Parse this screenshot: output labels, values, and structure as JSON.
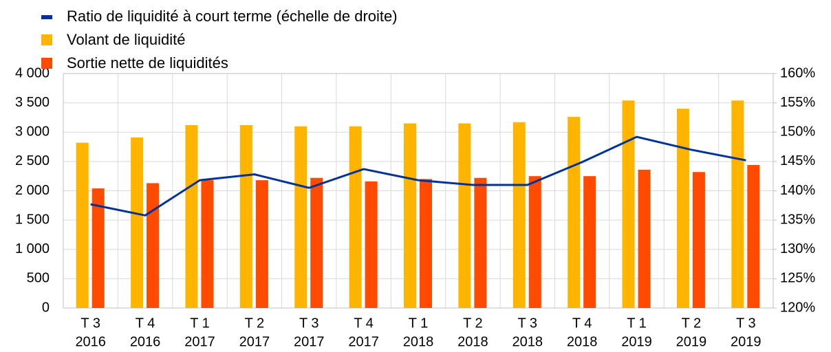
{
  "chart_data": {
    "type": "bar",
    "categories": [
      [
        "T 3",
        "2016"
      ],
      [
        "T 4",
        "2016"
      ],
      [
        "T 1",
        "2017"
      ],
      [
        "T 2",
        "2017"
      ],
      [
        "T 3",
        "2017"
      ],
      [
        "T 4",
        "2017"
      ],
      [
        "T 1",
        "2018"
      ],
      [
        "T 2",
        "2018"
      ],
      [
        "T 3",
        "2018"
      ],
      [
        "T 4",
        "2018"
      ],
      [
        "T 1",
        "2019"
      ],
      [
        "T 2",
        "2019"
      ],
      [
        "T 3",
        "2019"
      ]
    ],
    "series": [
      {
        "name": "Ratio de liquidité à court terme (échelle de droite)",
        "type": "line",
        "axis": "y2",
        "color": "#003299",
        "values": [
          137.7,
          135.8,
          141.8,
          142.8,
          140.5,
          143.7,
          141.8,
          141.0,
          141.0,
          144.9,
          149.2,
          147.0,
          145.2
        ]
      },
      {
        "name": "Volant de liquidité",
        "type": "bar",
        "color": "#ffb400",
        "values": [
          2820,
          2910,
          3120,
          3120,
          3100,
          3100,
          3150,
          3150,
          3170,
          3260,
          3540,
          3400,
          3540
        ]
      },
      {
        "name": "Sortie nette de liquidités",
        "type": "bar",
        "color": "#ff4b00",
        "values": [
          2040,
          2130,
          2180,
          2180,
          2220,
          2160,
          2200,
          2220,
          2250,
          2250,
          2360,
          2320,
          2440
        ]
      }
    ],
    "ylim": [
      0,
      4000
    ],
    "yticks": [
      0,
      500,
      {
        "value": 1000,
        "label": "1 000"
      },
      {
        "value": 1500,
        "label": "1 500"
      },
      {
        "value": 2000,
        "label": "2 000"
      },
      {
        "value": 2500,
        "label": "2 500"
      },
      {
        "value": 3000,
        "label": "3 000"
      },
      {
        "value": 3500,
        "label": "3 500"
      },
      {
        "value": 4000,
        "label": "4 000"
      }
    ],
    "y2lim": [
      120,
      160
    ],
    "y2ticks": [
      {
        "value": 120,
        "label": "120%"
      },
      {
        "value": 125,
        "label": "125%"
      },
      {
        "value": 130,
        "label": "130%"
      },
      {
        "value": 135,
        "label": "135%"
      },
      {
        "value": 140,
        "label": "140%"
      },
      {
        "value": 145,
        "label": "145%"
      },
      {
        "value": 150,
        "label": "150%"
      },
      {
        "value": 155,
        "label": "155%"
      },
      {
        "value": 160,
        "label": "160%"
      }
    ],
    "grid": true
  }
}
